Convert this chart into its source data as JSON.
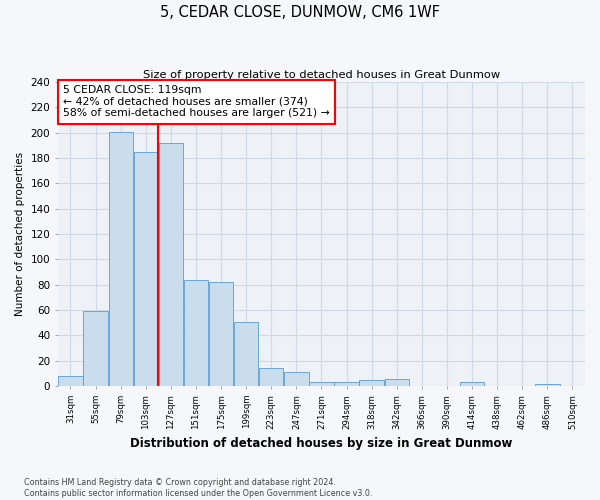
{
  "title": "5, CEDAR CLOSE, DUNMOW, CM6 1WF",
  "subtitle": "Size of property relative to detached houses in Great Dunmow",
  "bar_labels": [
    "31sqm",
    "55sqm",
    "79sqm",
    "103sqm",
    "127sqm",
    "151sqm",
    "175sqm",
    "199sqm",
    "223sqm",
    "247sqm",
    "271sqm",
    "294sqm",
    "318sqm",
    "342sqm",
    "366sqm",
    "390sqm",
    "414sqm",
    "438sqm",
    "462sqm",
    "486sqm",
    "510sqm"
  ],
  "bar_values": [
    8,
    59,
    201,
    185,
    192,
    84,
    82,
    51,
    14,
    11,
    3,
    3,
    5,
    6,
    0,
    0,
    3,
    0,
    0,
    2,
    0
  ],
  "bar_color": "#c9dded",
  "bar_edge_color": "#5b9bd5",
  "red_line_x": 3.5,
  "annotation_title": "5 CEDAR CLOSE: 119sqm",
  "annotation_line1": "← 42% of detached houses are smaller (374)",
  "annotation_line2": "58% of semi-detached houses are larger (521) →",
  "ylabel": "Number of detached properties",
  "xlabel": "Distribution of detached houses by size in Great Dunmow",
  "ylim": [
    0,
    240
  ],
  "yticks": [
    0,
    20,
    40,
    60,
    80,
    100,
    120,
    140,
    160,
    180,
    200,
    220,
    240
  ],
  "footer1": "Contains HM Land Registry data © Crown copyright and database right 2024.",
  "footer2": "Contains public sector information licensed under the Open Government Licence v3.0.",
  "plot_bg_color": "#eef2f7",
  "fig_bg_color": "#f5f7fa",
  "grid_color": "#d0dae6"
}
